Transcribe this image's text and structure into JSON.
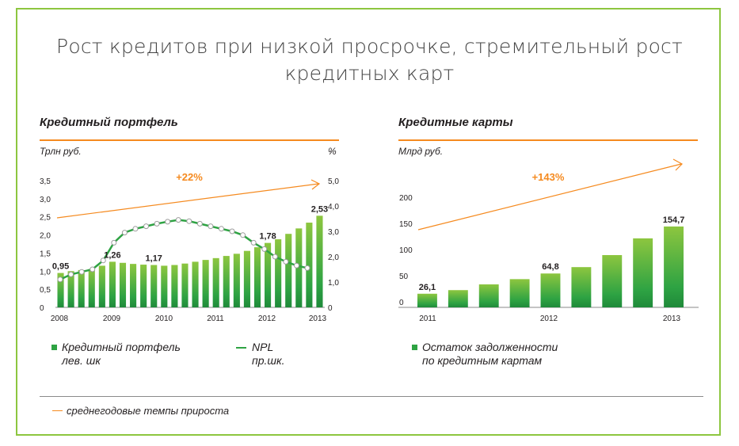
{
  "title_line1": "Рост кредитов при низкой просрочке, стремительный рост",
  "title_line2": "кредитных карт",
  "left": {
    "section_title": "Кредитный портфель",
    "unit_left": "Трлн руб.",
    "unit_right": "%",
    "legend_portfolio_line1": "Кредитный портфель",
    "legend_portfolio_line2": "лев. шк",
    "legend_npl_line1": "NPL",
    "legend_npl_line2": "пр.шк."
  },
  "right": {
    "section_title": "Кредитные карты",
    "unit": "Млрд руб.",
    "legend_line1": "Остаток задолженности",
    "legend_line2": "по кредитным картам"
  },
  "footer_legend": "среднегодовые темпы прироста",
  "colors": {
    "accent_orange": "#f58a1f",
    "bar_green": "#2ea343",
    "bar_light": "#8dc63f",
    "frame_green": "#8dc63f"
  },
  "chart_data": [
    {
      "type": "bar",
      "title": "Кредитный портфель",
      "ylabel": "Трлн руб.",
      "y2label": "%",
      "ylim": [
        0,
        3.5
      ],
      "y2lim": [
        0,
        5.0
      ],
      "yticks": [
        "0",
        "0,5",
        "1,0",
        "1,5",
        "2,0",
        "2,5",
        "3,0",
        "3,5"
      ],
      "y2ticks": [
        "0",
        "1,0",
        "2,0",
        "3,0",
        "4,0",
        "5,0"
      ],
      "x_labels": [
        "2008",
        "2009",
        "2010",
        "2011",
        "2012",
        "2013"
      ],
      "series": [
        {
          "name": "Кредитный портфель лев. шк",
          "values": [
            0.95,
            1.0,
            1.03,
            1.06,
            1.15,
            1.26,
            1.23,
            1.2,
            1.18,
            1.17,
            1.15,
            1.17,
            1.21,
            1.26,
            1.31,
            1.36,
            1.42,
            1.48,
            1.56,
            1.66,
            1.78,
            1.88,
            2.03,
            2.18,
            2.34,
            2.53
          ]
        },
        {
          "name": "NPL пр.шк.",
          "values": [
            1.1,
            1.3,
            1.4,
            1.5,
            1.85,
            2.55,
            2.95,
            3.1,
            3.2,
            3.3,
            3.38,
            3.45,
            3.4,
            3.3,
            3.2,
            3.1,
            3.0,
            2.85,
            2.55,
            2.3,
            2.0,
            1.8,
            1.65,
            1.55
          ]
        }
      ],
      "data_labels": [
        {
          "index": 0,
          "text": "0,95"
        },
        {
          "index": 5,
          "text": "1,26"
        },
        {
          "index": 9,
          "text": "1,17"
        },
        {
          "index": 20,
          "text": "1,78"
        },
        {
          "index": 25,
          "text": "2,53"
        }
      ],
      "trend_label": "+22%"
    },
    {
      "type": "bar",
      "title": "Кредитные карты",
      "ylabel": "Млрд руб.",
      "ylim": [
        0,
        200
      ],
      "yticks": [
        "0",
        "50",
        "100",
        "150",
        "200"
      ],
      "x_labels": [
        "2011",
        "2012",
        "2013"
      ],
      "series": [
        {
          "name": "Остаток задолженности по кредитным картам",
          "values": [
            26.1,
            33,
            44,
            54,
            64.8,
            77,
            100,
            132,
            154.7
          ]
        }
      ],
      "data_labels": [
        {
          "index": 0,
          "text": "26,1"
        },
        {
          "index": 4,
          "text": "64,8"
        },
        {
          "index": 8,
          "text": "154,7"
        }
      ],
      "trend_label": "+143%"
    }
  ]
}
